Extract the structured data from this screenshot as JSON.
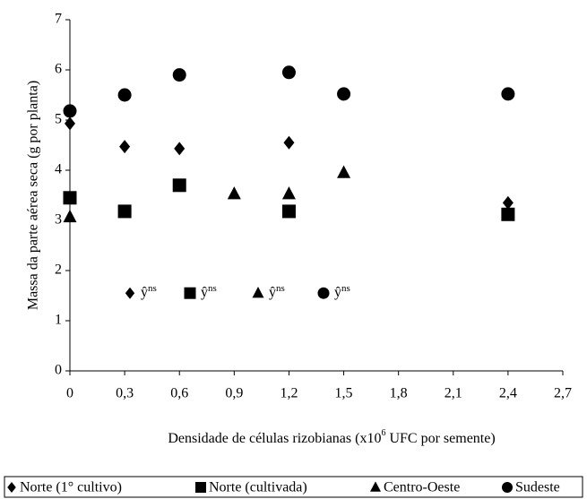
{
  "chart_data": {
    "type": "scatter",
    "ylabel": "Massa da parte aérea  seca (g por planta)",
    "xlabel": {
      "text": "Densidade de células rizobianas  (x10",
      "sup": "6",
      "after": " UFC por semente)"
    },
    "xlim": [
      0,
      2.7
    ],
    "xticks": [
      0,
      {
        "value": 0.3,
        "label": "0,3"
      },
      {
        "value": 0.6,
        "label": "0,6"
      },
      {
        "value": 0.9,
        "label": "0,9"
      },
      {
        "value": 1.2,
        "label": "1,2"
      },
      {
        "value": 1.5,
        "label": "1,5"
      },
      {
        "value": 1.8,
        "label": "1,8"
      },
      {
        "value": 2.1,
        "label": "2,1"
      },
      {
        "value": 2.4,
        "label": "2,4"
      },
      {
        "value": 2.7,
        "label": "2,7"
      }
    ],
    "ylim": [
      0,
      7
    ],
    "yticks": [
      0,
      1,
      2,
      3,
      4,
      5,
      6,
      7
    ],
    "series": [
      {
        "name": "Norte (1° cultivo)",
        "marker": "diamond",
        "color": "#000000",
        "x": [
          0,
          0.3,
          0.6,
          1.2,
          2.4
        ],
        "values": [
          4.93,
          4.47,
          4.43,
          4.55,
          3.35
        ],
        "fit_label": {
          "text": "ŷ",
          "sup": "ns"
        }
      },
      {
        "name": "Norte (cultivada)",
        "marker": "square",
        "color": "#000000",
        "x": [
          0,
          0.3,
          0.6,
          1.2,
          2.4
        ],
        "values": [
          3.45,
          3.18,
          3.7,
          3.18,
          3.12
        ],
        "fit_label": {
          "text": "ŷ",
          "sup": "ns"
        }
      },
      {
        "name": "Centro-Oeste",
        "marker": "triangle",
        "color": "#000000",
        "x": [
          0,
          0.9,
          1.2,
          1.5
        ],
        "values": [
          3.07,
          3.53,
          3.53,
          3.95
        ],
        "fit_label": {
          "text": "ŷ",
          "sup": "ns"
        }
      },
      {
        "name": "Sudeste",
        "marker": "circle",
        "color": "#000000",
        "x": [
          0,
          0.3,
          0.6,
          1.2,
          1.5,
          2.4
        ],
        "values": [
          5.18,
          5.5,
          5.9,
          5.95,
          5.52,
          5.52
        ],
        "fit_label": {
          "text": "ŷ",
          "sup": "ns"
        }
      }
    ]
  }
}
